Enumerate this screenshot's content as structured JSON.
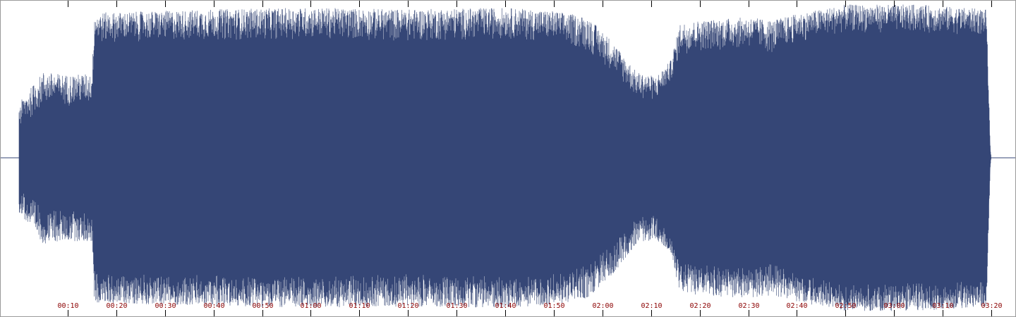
{
  "waveform": {
    "colors": {
      "wave": "#354676",
      "background": "#ffffff",
      "tick": "#000000",
      "tick_label": "#8b0000"
    },
    "duration_seconds": 200,
    "amplitude_envelope": [
      {
        "t": 0,
        "peak": 0.35,
        "body": 0.18
      },
      {
        "t": 5,
        "peak": 0.55,
        "body": 0.33
      },
      {
        "t": 10,
        "peak": 0.53,
        "body": 0.33
      },
      {
        "t": 15,
        "peak": 0.54,
        "body": 0.34
      },
      {
        "t": 15.5,
        "peak": 0.93,
        "body": 0.72
      },
      {
        "t": 20,
        "peak": 0.93,
        "body": 0.74
      },
      {
        "t": 40,
        "peak": 0.95,
        "body": 0.75
      },
      {
        "t": 60,
        "peak": 0.96,
        "body": 0.76
      },
      {
        "t": 80,
        "peak": 0.95,
        "body": 0.74
      },
      {
        "t": 100,
        "peak": 0.96,
        "body": 0.76
      },
      {
        "t": 110,
        "peak": 0.94,
        "body": 0.74
      },
      {
        "t": 117,
        "peak": 0.9,
        "body": 0.68
      },
      {
        "t": 122,
        "peak": 0.75,
        "body": 0.55
      },
      {
        "t": 127,
        "peak": 0.55,
        "body": 0.38
      },
      {
        "t": 131,
        "peak": 0.52,
        "body": 0.36
      },
      {
        "t": 134,
        "peak": 0.62,
        "body": 0.48
      },
      {
        "t": 136,
        "peak": 0.86,
        "body": 0.66
      },
      {
        "t": 140,
        "peak": 0.88,
        "body": 0.68
      },
      {
        "t": 150,
        "peak": 0.9,
        "body": 0.7
      },
      {
        "t": 155,
        "peak": 0.88,
        "body": 0.66
      },
      {
        "t": 160,
        "peak": 0.92,
        "body": 0.74
      },
      {
        "t": 170,
        "peak": 0.98,
        "body": 0.8
      },
      {
        "t": 185,
        "peak": 0.98,
        "body": 0.8
      },
      {
        "t": 199,
        "peak": 0.95,
        "body": 0.78
      },
      {
        "t": 199.8,
        "peak": 0.06,
        "body": 0.03
      },
      {
        "t": 200,
        "peak": 0.0,
        "body": 0.0
      }
    ],
    "ticks": [
      {
        "seconds": 10,
        "label": "00:10"
      },
      {
        "seconds": 20,
        "label": "00:20"
      },
      {
        "seconds": 30,
        "label": "00:30"
      },
      {
        "seconds": 40,
        "label": "00:40"
      },
      {
        "seconds": 50,
        "label": "00:50"
      },
      {
        "seconds": 60,
        "label": "01:00"
      },
      {
        "seconds": 70,
        "label": "01:10"
      },
      {
        "seconds": 80,
        "label": "01:20"
      },
      {
        "seconds": 90,
        "label": "01:30"
      },
      {
        "seconds": 100,
        "label": "01:40"
      },
      {
        "seconds": 110,
        "label": "01:50"
      },
      {
        "seconds": 120,
        "label": "02:00"
      },
      {
        "seconds": 130,
        "label": "02:10"
      },
      {
        "seconds": 140,
        "label": "02:20"
      },
      {
        "seconds": 150,
        "label": "02:30"
      },
      {
        "seconds": 160,
        "label": "02:40"
      },
      {
        "seconds": 170,
        "label": "02:50"
      },
      {
        "seconds": 180,
        "label": "03:00"
      },
      {
        "seconds": 190,
        "label": "03:10"
      },
      {
        "seconds": 200,
        "label": "03:20"
      }
    ]
  }
}
